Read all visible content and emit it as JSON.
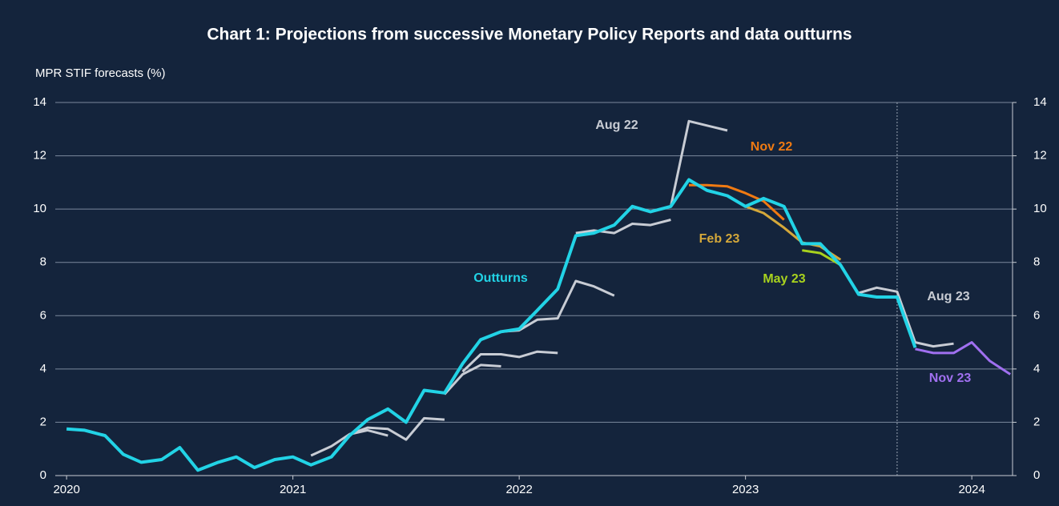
{
  "chart_data": {
    "type": "line",
    "title": "Chart 1: Projections from successive Monetary Policy Reports and data outturns",
    "ylabel": "MPR STIF forecasts (%)",
    "xlim": [
      2019.95,
      2024.18
    ],
    "xticks": [
      2020,
      2021,
      2022,
      2023,
      2024
    ],
    "ylim": [
      0,
      14
    ],
    "yticks": [
      0,
      2,
      4,
      6,
      8,
      10,
      12,
      14
    ],
    "y2lim": [
      0,
      14
    ],
    "y2ticks": [
      0,
      2,
      4,
      6,
      8,
      10,
      12,
      14
    ],
    "grid": true,
    "vline": 2023.67,
    "series": [
      {
        "color": "#c8ccd4",
        "x": [
          2021.08,
          2021.17,
          2021.25,
          2021.33,
          2021.42
        ],
        "values": [
          0.75,
          1.1,
          1.55,
          1.7,
          1.5
        ]
      },
      {
        "color": "#c8ccd4",
        "x": [
          2021.25,
          2021.33,
          2021.42,
          2021.5,
          2021.58,
          2021.67
        ],
        "values": [
          1.55,
          1.8,
          1.75,
          1.35,
          2.15,
          2.1
        ]
      },
      {
        "color": "#c8ccd4",
        "x": [
          2021.67,
          2021.75,
          2021.83,
          2021.92
        ],
        "values": [
          3.05,
          3.8,
          4.15,
          4.1
        ]
      },
      {
        "color": "#c8ccd4",
        "x": [
          2021.75,
          2021.83,
          2021.92,
          2022.0,
          2022.08,
          2022.17
        ],
        "values": [
          3.9,
          4.55,
          4.55,
          4.45,
          4.65,
          4.6
        ]
      },
      {
        "color": "#c8ccd4",
        "x": [
          2021.92,
          2022.0,
          2022.08,
          2022.17,
          2022.25,
          2022.33,
          2022.42
        ],
        "values": [
          5.4,
          5.45,
          5.85,
          5.9,
          7.3,
          7.1,
          6.75
        ]
      },
      {
        "color": "#c8ccd4",
        "x": [
          2022.25,
          2022.33,
          2022.42,
          2022.5,
          2022.58,
          2022.67
        ],
        "values": [
          9.1,
          9.2,
          9.1,
          9.45,
          9.4,
          9.6
        ]
      },
      {
        "name": "Aug 22",
        "color": "#c8ccd4",
        "x": [
          2022.67,
          2022.75,
          2022.92
        ],
        "values": [
          10.1,
          13.3,
          12.95
        ]
      },
      {
        "name": "Nov 22",
        "color": "#f07a12",
        "x": [
          2022.75,
          2022.83,
          2022.92,
          2023.0,
          2023.08,
          2023.17
        ],
        "values": [
          10.9,
          10.9,
          10.85,
          10.6,
          10.3,
          9.6
        ]
      },
      {
        "name": "Feb 23",
        "color": "#d4a83a",
        "x": [
          2023.0,
          2023.08,
          2023.17,
          2023.25,
          2023.33,
          2023.42
        ],
        "values": [
          10.1,
          9.85,
          9.3,
          8.75,
          8.6,
          8.1
        ]
      },
      {
        "name": "May 23",
        "color": "#a8d21e",
        "x": [
          2023.25,
          2023.33,
          2023.42
        ],
        "values": [
          8.45,
          8.35,
          7.9
        ]
      },
      {
        "name": "Aug 23",
        "color": "#c8ccd4",
        "x": [
          2023.5,
          2023.58,
          2023.67,
          2023.75,
          2023.83,
          2023.92
        ],
        "values": [
          6.85,
          7.05,
          6.9,
          5.0,
          4.85,
          4.95
        ]
      },
      {
        "name": "Nov 23",
        "color": "#a070f0",
        "x": [
          2023.75,
          2023.83,
          2023.92,
          2024.0,
          2024.08,
          2024.17
        ],
        "values": [
          4.75,
          4.6,
          4.6,
          5.0,
          4.3,
          3.8
        ]
      },
      {
        "name": "Outturns",
        "color": "#22d3e6",
        "x": [
          2020.0,
          2020.08,
          2020.17,
          2020.25,
          2020.33,
          2020.42,
          2020.5,
          2020.58,
          2020.67,
          2020.75,
          2020.83,
          2020.92,
          2021.0,
          2021.08,
          2021.17,
          2021.25,
          2021.33,
          2021.42,
          2021.5,
          2021.58,
          2021.67,
          2021.75,
          2021.83,
          2021.92,
          2022.0,
          2022.08,
          2022.17,
          2022.25,
          2022.33,
          2022.42,
          2022.5,
          2022.58,
          2022.67,
          2022.75,
          2022.83,
          2022.92,
          2023.0,
          2023.08,
          2023.17,
          2023.25,
          2023.33,
          2023.42,
          2023.5,
          2023.58,
          2023.67,
          2023.75
        ],
        "values": [
          1.75,
          1.7,
          1.5,
          0.8,
          0.5,
          0.6,
          1.05,
          0.2,
          0.5,
          0.7,
          0.3,
          0.6,
          0.7,
          0.4,
          0.7,
          1.5,
          2.1,
          2.5,
          2.0,
          3.2,
          3.1,
          4.2,
          5.1,
          5.4,
          5.5,
          6.2,
          7.0,
          9.0,
          9.1,
          9.4,
          10.1,
          9.9,
          10.1,
          11.1,
          10.7,
          10.5,
          10.1,
          10.4,
          10.1,
          8.7,
          8.7,
          7.9,
          6.8,
          6.7,
          6.7,
          4.8
        ]
      }
    ]
  }
}
